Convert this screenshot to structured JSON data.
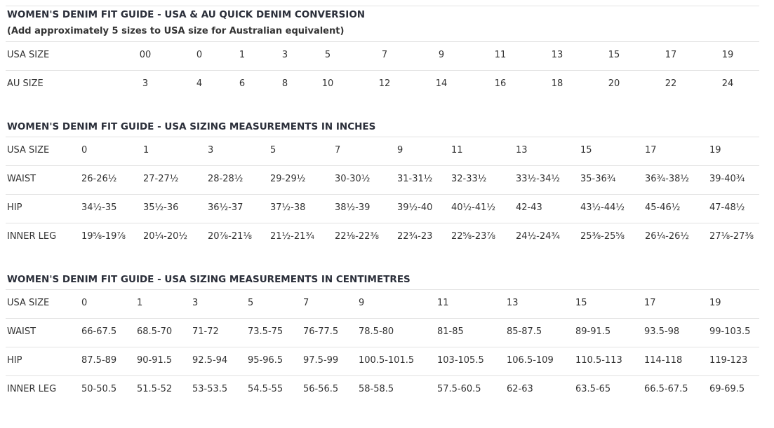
{
  "tables": [
    {
      "title": "WOMEN'S DENIM FIT GUIDE - USA & AU QUICK DENIM CONVERSION",
      "subtitle": "(Add approximately 5 sizes to USA size for Australian equivalent)",
      "rows": [
        [
          "USA SIZE",
          "00",
          "0",
          "1",
          "3",
          "5",
          "7",
          "9",
          "11",
          "13",
          "15",
          "17",
          "19"
        ],
        [
          "AU SIZE",
          "3",
          "4",
          "6",
          "8",
          "10",
          "12",
          "14",
          "16",
          "18",
          "20",
          "22",
          "24"
        ]
      ]
    },
    {
      "title": "WOMEN'S DENIM FIT GUIDE - USA SIZING MEASUREMENTS IN INCHES",
      "rows": [
        [
          "USA SIZE",
          "0",
          "1",
          "3",
          "5",
          "7",
          "9",
          "11",
          "13",
          "15",
          "17",
          "19"
        ],
        [
          "WAIST",
          "26-26½",
          "27-27½",
          "28-28½",
          "29-29½",
          "30-30½",
          "31-31½",
          "32-33½",
          "33½-34½",
          "35-36¾",
          "36¾-38½",
          "39-40¾"
        ],
        [
          "HIP",
          "34½-35",
          "35½-36",
          "36½-37",
          "37½-38",
          "38½-39",
          "39½-40",
          "40½-41½",
          "42-43",
          "43½-44½",
          "45-46½",
          "47-48½"
        ],
        [
          "INNER LEG",
          "19⅝-19⅞",
          "20¼-20½",
          "20⅞-21⅛",
          "21½-21¾",
          "22⅛-22⅜",
          "22¾-23",
          "22⅝-23⅞",
          "24½-24¾",
          "25⅜-25⅝",
          "26¼-26½",
          "27⅛-27⅜"
        ]
      ]
    },
    {
      "title": "WOMEN'S DENIM FIT GUIDE - USA SIZING MEASUREMENTS IN CENTIMETRES",
      "rows": [
        [
          "USA SIZE",
          "0",
          "1",
          "3",
          "5",
          "7",
          "9",
          "11",
          "13",
          "15",
          "17",
          "19"
        ],
        [
          "WAIST",
          "66-67.5",
          "68.5-70",
          "71-72",
          "73.5-75",
          "76-77.5",
          "78.5-80",
          "81-85",
          "85-87.5",
          "89-91.5",
          "93.5-98",
          "99-103.5"
        ],
        [
          "HIP",
          "87.5-89",
          "90-91.5",
          "92.5-94",
          "95-96.5",
          "97.5-99",
          "100.5-101.5",
          "103-105.5",
          "106.5-109",
          "110.5-113",
          "114-118",
          "119-123"
        ],
        [
          "INNER LEG",
          "50-50.5",
          "51.5-52",
          "53-53.5",
          "54.5-55",
          "56-56.5",
          "58-58.5",
          "57.5-60.5",
          "62-63",
          "63.5-65",
          "66.5-67.5",
          "69-69.5"
        ]
      ]
    }
  ]
}
